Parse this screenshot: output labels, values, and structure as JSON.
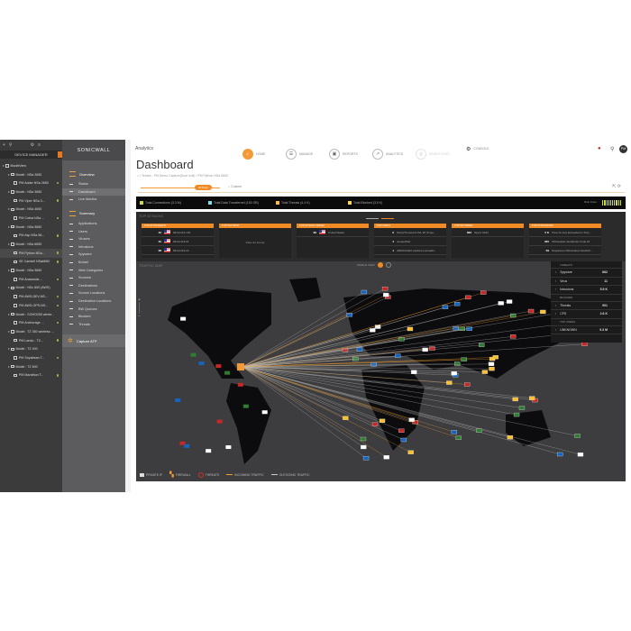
{
  "tree": {
    "header": "DEVICE MANAGER",
    "items": [
      {
        "label": "ModelView",
        "level": 0
      },
      {
        "label": "Model : NSa 2650",
        "level": 1
      },
      {
        "label": "PM Adder NSa 2650",
        "level": 2
      },
      {
        "label": "Model : NSa 3650",
        "level": 1
      },
      {
        "label": "PM Viper NSa 3...",
        "level": 2
      },
      {
        "label": "Model : NSa 4650",
        "level": 1
      },
      {
        "label": "PM Cobra NSa ...",
        "level": 2
      },
      {
        "label": "Model : NSa 5650",
        "level": 1
      },
      {
        "label": "PM Asp NSa 56...",
        "level": 2
      },
      {
        "label": "Model : NSa 6650",
        "level": 1
      },
      {
        "label": "PM Python NSa...",
        "level": 2,
        "selected": true
      },
      {
        "label": "SE Camtell NSa6650",
        "level": 2
      },
      {
        "label": "Model : NSa 9650",
        "level": 1
      },
      {
        "label": "PM Anaconda ...",
        "level": 2
      },
      {
        "label": "Model : NSv 800 (AWS)",
        "level": 1
      },
      {
        "label": "PM AWS-DEV-NS...",
        "level": 2
      },
      {
        "label": "PM AWS-OPS-NS...",
        "level": 2
      },
      {
        "label": "Model : SOHO250 wirele...",
        "level": 1
      },
      {
        "label": "PM Anchorage ...",
        "level": 2
      },
      {
        "label": "Model : TZ 350 wireless ...",
        "level": 1
      },
      {
        "label": "PM Lando - TZ...",
        "level": 2
      },
      {
        "label": "Model : TZ 400",
        "level": 1
      },
      {
        "label": "PM Soyabean T...",
        "level": 2
      },
      {
        "label": "Model : TZ 600",
        "level": 1
      },
      {
        "label": "PM Marathon T...",
        "level": 2
      }
    ]
  },
  "nav": {
    "logo": "SONICWALL",
    "overview": "Overview",
    "overview_items": [
      "Status",
      "Dashboard",
      "Live Monitor"
    ],
    "summary": "Summary",
    "summary_items": [
      "Applications",
      "Users",
      "Viruses",
      "Intrusions",
      "Spyware",
      "Botnet",
      "Web Categories",
      "Sources",
      "Destinations",
      "Source Locations",
      "Destination Locations",
      "BW Queues",
      "Blocked",
      "Threats"
    ],
    "capture": "Capture ATP"
  },
  "header": {
    "title": "Analytics",
    "tabs": [
      {
        "label": "HOME",
        "icon": "home-icon",
        "active": true
      },
      {
        "label": "MANAGE",
        "icon": "manage-icon"
      },
      {
        "label": "REPORTS",
        "icon": "reports-icon"
      },
      {
        "label": "ANALYTICS",
        "icon": "analytics-icon"
      },
      {
        "label": "INVESTIGATE",
        "icon": "investigate-icon",
        "disabled": true
      }
    ],
    "console": "CONSOLE",
    "avatar": "PM"
  },
  "page": {
    "title": "Dashboard",
    "breadcrumb": "/ Tenant - PM Demo Capture(Dual Unit) / PM Python NSa 6650",
    "time_range": "30 Days",
    "custom": "Custom"
  },
  "stats": [
    {
      "label": "Total Connections (3.3 M)",
      "color": "#cddc39"
    },
    {
      "label": "Total Data Transferred (153 GB)",
      "color": "#80deea"
    },
    {
      "label": "Total Threats (4.4 K)",
      "color": "#ffb74d"
    },
    {
      "label": "Total Blocked (3.5 K)",
      "color": "#ffd54f"
    }
  ],
  "risk_index": "Risk Index",
  "top_attacks": {
    "title": "TOP ATTACKS",
    "cards": [
      {
        "title": "TOP ATTACKER IP",
        "rows": [
          {
            "n": "40",
            "flag": true,
            "t": "99.64.215.133"
          },
          {
            "n": "40",
            "flag": true,
            "t": "99.64.219.61"
          },
          {
            "n": "38",
            "flag": true,
            "t": "99.64.219.22"
          }
        ]
      },
      {
        "title": "TOP VICTIM IP",
        "empty": "Data not Found"
      },
      {
        "title": "TOP ATTACK ORIGIN",
        "rows": [
          {
            "n": "89",
            "flag": true,
            "t": "United States"
          }
        ]
      },
      {
        "title": "TOP VIRUS",
        "rows": [
          {
            "n": "6",
            "t": "Script/Trenscerd AVL 25 (Troja..."
          },
          {
            "n": "4",
            "t": "unspecified"
          },
          {
            "n": "1",
            "t": "ARMAXGEO packed executabl..."
          }
        ]
      },
      {
        "title": "TOP SPYWARE",
        "rows": [
          {
            "n": "862",
            "t": "Spyze 9103"
          }
        ]
      },
      {
        "title": "TOP INTRUSIONS",
        "rows": [
          {
            "n": "5 K",
            "t": "Time-To-Live Exceeded in Tran..."
          },
          {
            "n": "305",
            "t": "Obfuscated JavaScript Code 94"
          },
          {
            "n": "59",
            "t": "Suspicious Obfuscated JavaScri..."
          }
        ]
      }
    ]
  },
  "traffic_map": {
    "title": "TRAFFIC MAP",
    "world_view": "WORLD VIEW",
    "threats_header": "THREATS",
    "threats": [
      {
        "label": "Spyware",
        "value": "862"
      },
      {
        "label": "Virus",
        "value": "11"
      },
      {
        "label": "Intrusions",
        "value": "5.5 K"
      }
    ],
    "blocked_header": "BLOCKED",
    "blocked": [
      {
        "label": "Threats",
        "value": "901"
      },
      {
        "label": "CFS",
        "value": "2.6 K"
      }
    ],
    "top_users_header": "TOP USERS",
    "top_users": [
      {
        "label": "UNKNOWN",
        "value": "9.3 M"
      }
    ],
    "legend": {
      "private_ip": "PRIVATE IP",
      "firewall": "FIREWALL",
      "threats": "THREATS",
      "incoming": "INCOMING TRAFFIC",
      "outgoing": "OUTGOING TRAFFIC"
    },
    "colors": {
      "incoming": "#f0a030",
      "outgoing": "#cccccc",
      "threat": "#d32f2f"
    }
  }
}
